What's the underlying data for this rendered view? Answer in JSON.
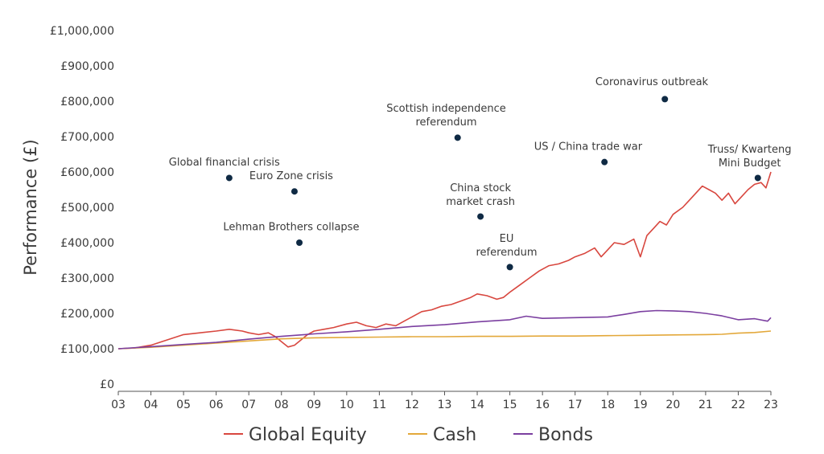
{
  "chart_data": {
    "type": "line",
    "ylabel": "Performance (£)",
    "xlabel": "",
    "xlim": [
      3,
      23
    ],
    "ylim": [
      0,
      1000000
    ],
    "x_ticks": [
      "03",
      "04",
      "05",
      "06",
      "07",
      "08",
      "09",
      "10",
      "11",
      "12",
      "13",
      "14",
      "15",
      "16",
      "17",
      "18",
      "19",
      "20",
      "21",
      "22",
      "23"
    ],
    "y_ticks": [
      "£0",
      "£100,000",
      "£200,000",
      "£300,000",
      "£400,000",
      "£500,000",
      "£600,000",
      "£700,000",
      "£800,000",
      "£900,000",
      "£1,000,000"
    ],
    "grid": false,
    "legend_position": "bottom",
    "series": [
      {
        "name": "Global Equity",
        "color": "#d8473f",
        "x": [
          3.0,
          3.5,
          4.0,
          4.5,
          5.0,
          5.5,
          6.0,
          6.4,
          6.8,
          7.0,
          7.3,
          7.6,
          7.8,
          8.0,
          8.2,
          8.4,
          8.6,
          8.8,
          9.0,
          9.3,
          9.6,
          10.0,
          10.3,
          10.6,
          10.9,
          11.2,
          11.5,
          11.8,
          12.0,
          12.3,
          12.6,
          12.9,
          13.2,
          13.5,
          13.8,
          14.0,
          14.3,
          14.6,
          14.8,
          15.0,
          15.3,
          15.6,
          15.9,
          16.2,
          16.5,
          16.8,
          17.0,
          17.3,
          17.6,
          17.8,
          18.0,
          18.2,
          18.5,
          18.8,
          19.0,
          19.2,
          19.4,
          19.6,
          19.8,
          20.0,
          20.3,
          20.6,
          20.9,
          21.1,
          21.3,
          21.5,
          21.7,
          21.9,
          22.1,
          22.3,
          22.5,
          22.7,
          22.85,
          23.0
        ],
        "y": [
          100000,
          102000,
          110000,
          125000,
          140000,
          145000,
          150000,
          155000,
          150000,
          145000,
          140000,
          145000,
          135000,
          120000,
          105000,
          110000,
          125000,
          140000,
          150000,
          155000,
          160000,
          170000,
          175000,
          165000,
          160000,
          170000,
          165000,
          180000,
          190000,
          205000,
          210000,
          220000,
          225000,
          235000,
          245000,
          255000,
          250000,
          240000,
          245000,
          260000,
          280000,
          300000,
          320000,
          335000,
          340000,
          350000,
          360000,
          370000,
          385000,
          360000,
          380000,
          400000,
          395000,
          410000,
          360000,
          420000,
          440000,
          460000,
          450000,
          480000,
          500000,
          530000,
          560000,
          550000,
          540000,
          520000,
          540000,
          510000,
          530000,
          550000,
          565000,
          570000,
          555000,
          600000
        ]
      },
      {
        "name": "Cash",
        "color": "#e3a83a",
        "x": [
          3,
          4,
          5,
          6,
          7,
          8,
          9,
          10,
          11,
          12,
          13,
          14,
          15,
          16,
          17,
          18,
          19,
          20,
          21,
          21.5,
          22,
          22.5,
          23
        ],
        "y": [
          100000,
          104000,
          110000,
          116000,
          122000,
          128000,
          131000,
          132000,
          133000,
          134000,
          134000,
          135000,
          135000,
          136000,
          136000,
          137000,
          138000,
          139000,
          140000,
          141000,
          144000,
          146000,
          150000
        ]
      },
      {
        "name": "Bonds",
        "color": "#7b3fa0",
        "x": [
          3,
          4,
          5,
          6,
          7,
          8,
          9,
          10,
          11,
          12,
          13,
          14,
          15,
          15.5,
          16,
          17,
          18,
          18.5,
          19,
          19.5,
          20,
          20.5,
          21,
          21.5,
          22,
          22.5,
          22.9,
          23
        ],
        "y": [
          100000,
          106000,
          112000,
          118000,
          127000,
          135000,
          142000,
          148000,
          155000,
          163000,
          168000,
          176000,
          182000,
          192000,
          186000,
          188000,
          190000,
          197000,
          205000,
          208000,
          207000,
          205000,
          200000,
          193000,
          182000,
          185000,
          178000,
          188000
        ]
      }
    ],
    "annotations": [
      {
        "lines": [
          "Global financial crisis"
        ],
        "x": 6.4,
        "y": 583000,
        "text_x": 6.25,
        "text_y": 618000
      },
      {
        "lines": [
          "Euro Zone crisis"
        ],
        "x": 8.4,
        "y": 545000,
        "text_x": 8.3,
        "text_y": 580000
      },
      {
        "lines": [
          "Lehman Brothers collapse"
        ],
        "x": 8.55,
        "y": 400000,
        "text_x": 8.3,
        "text_y": 435000
      },
      {
        "lines": [
          "Scottish  independence",
          "referendum"
        ],
        "x": 13.4,
        "y": 697000,
        "text_x": 13.05,
        "text_y": 770000
      },
      {
        "lines": [
          "China stock",
          "market crash"
        ],
        "x": 14.1,
        "y": 474000,
        "text_x": 14.1,
        "text_y": 545000
      },
      {
        "lines": [
          "EU",
          "referendum"
        ],
        "x": 15.0,
        "y": 331000,
        "text_x": 14.9,
        "text_y": 402000
      },
      {
        "lines": [
          "US / China trade war"
        ],
        "x": 17.9,
        "y": 628000,
        "text_x": 17.4,
        "text_y": 662000
      },
      {
        "lines": [
          "Coronavirus outbreak"
        ],
        "x": 19.75,
        "y": 806000,
        "text_x": 19.35,
        "text_y": 845000
      },
      {
        "lines": [
          "Truss/ Kwarteng",
          "Mini Budget"
        ],
        "x": 22.6,
        "y": 583000,
        "text_x": 22.35,
        "text_y": 655000
      }
    ]
  }
}
